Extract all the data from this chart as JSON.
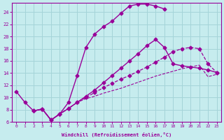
{
  "xlabel": "Windchill (Refroidissement éolien,°C)",
  "bg_color": "#c6ecee",
  "grid_color": "#a4d4d8",
  "line_color": "#990099",
  "xlim_min": -0.5,
  "xlim_max": 23.5,
  "ylim_min": 6,
  "ylim_max": 25.5,
  "xticks": [
    0,
    1,
    2,
    3,
    4,
    5,
    6,
    7,
    8,
    9,
    10,
    11,
    12,
    13,
    14,
    15,
    16,
    17,
    18,
    19,
    20,
    21,
    22,
    23
  ],
  "yticks": [
    6,
    8,
    10,
    12,
    14,
    16,
    18,
    20,
    22,
    24
  ],
  "lines": [
    {
      "x": [
        0,
        1,
        2,
        3,
        4,
        5,
        6,
        7,
        8,
        9,
        10,
        11,
        12,
        13,
        14,
        15,
        16,
        17
      ],
      "y": [
        11.0,
        9.2,
        7.8,
        8.1,
        6.3,
        7.3,
        9.2,
        13.6,
        18.2,
        20.4,
        21.6,
        22.5,
        23.8,
        25.0,
        25.3,
        25.3,
        25.0,
        24.5
      ],
      "marker": "D",
      "markersize": 2.5,
      "linestyle": "-",
      "linewidth": 1.0
    },
    {
      "x": [
        2,
        3,
        4,
        5,
        6,
        7,
        8,
        9,
        10,
        11,
        12,
        13,
        14,
        15,
        16,
        17,
        18,
        19,
        20,
        21,
        22,
        23
      ],
      "y": [
        7.8,
        8.1,
        6.3,
        7.3,
        8.2,
        9.2,
        10.2,
        11.2,
        12.4,
        13.6,
        14.8,
        16.0,
        17.2,
        18.5,
        19.5,
        18.2,
        15.5,
        15.2,
        15.0,
        14.8,
        14.5,
        14.1
      ],
      "marker": "D",
      "markersize": 2.5,
      "linestyle": "-",
      "linewidth": 1.0
    },
    {
      "x": [
        2,
        3,
        4,
        5,
        6,
        7,
        8,
        9,
        10,
        11,
        12,
        13,
        14,
        15,
        16,
        17,
        18,
        19,
        20,
        21,
        22,
        23
      ],
      "y": [
        7.8,
        8.1,
        6.3,
        7.3,
        8.2,
        9.2,
        10.0,
        10.8,
        11.6,
        12.3,
        13.0,
        13.6,
        14.3,
        15.0,
        15.8,
        16.6,
        17.5,
        18.0,
        18.2,
        18.0,
        15.5,
        14.1
      ],
      "marker": "D",
      "markersize": 2.5,
      "linestyle": "--",
      "linewidth": 0.9
    },
    {
      "x": [
        2,
        3,
        4,
        5,
        6,
        7,
        8,
        9,
        10,
        11,
        12,
        13,
        14,
        15,
        16,
        17,
        18,
        19,
        20,
        21,
        22,
        23
      ],
      "y": [
        7.8,
        8.1,
        6.3,
        7.3,
        8.2,
        9.2,
        9.8,
        10.2,
        10.7,
        11.1,
        11.5,
        12.0,
        12.5,
        13.0,
        13.5,
        13.9,
        14.3,
        14.7,
        15.0,
        15.3,
        13.4,
        13.8
      ],
      "marker": null,
      "markersize": 0,
      "linestyle": "--",
      "linewidth": 0.8
    }
  ]
}
